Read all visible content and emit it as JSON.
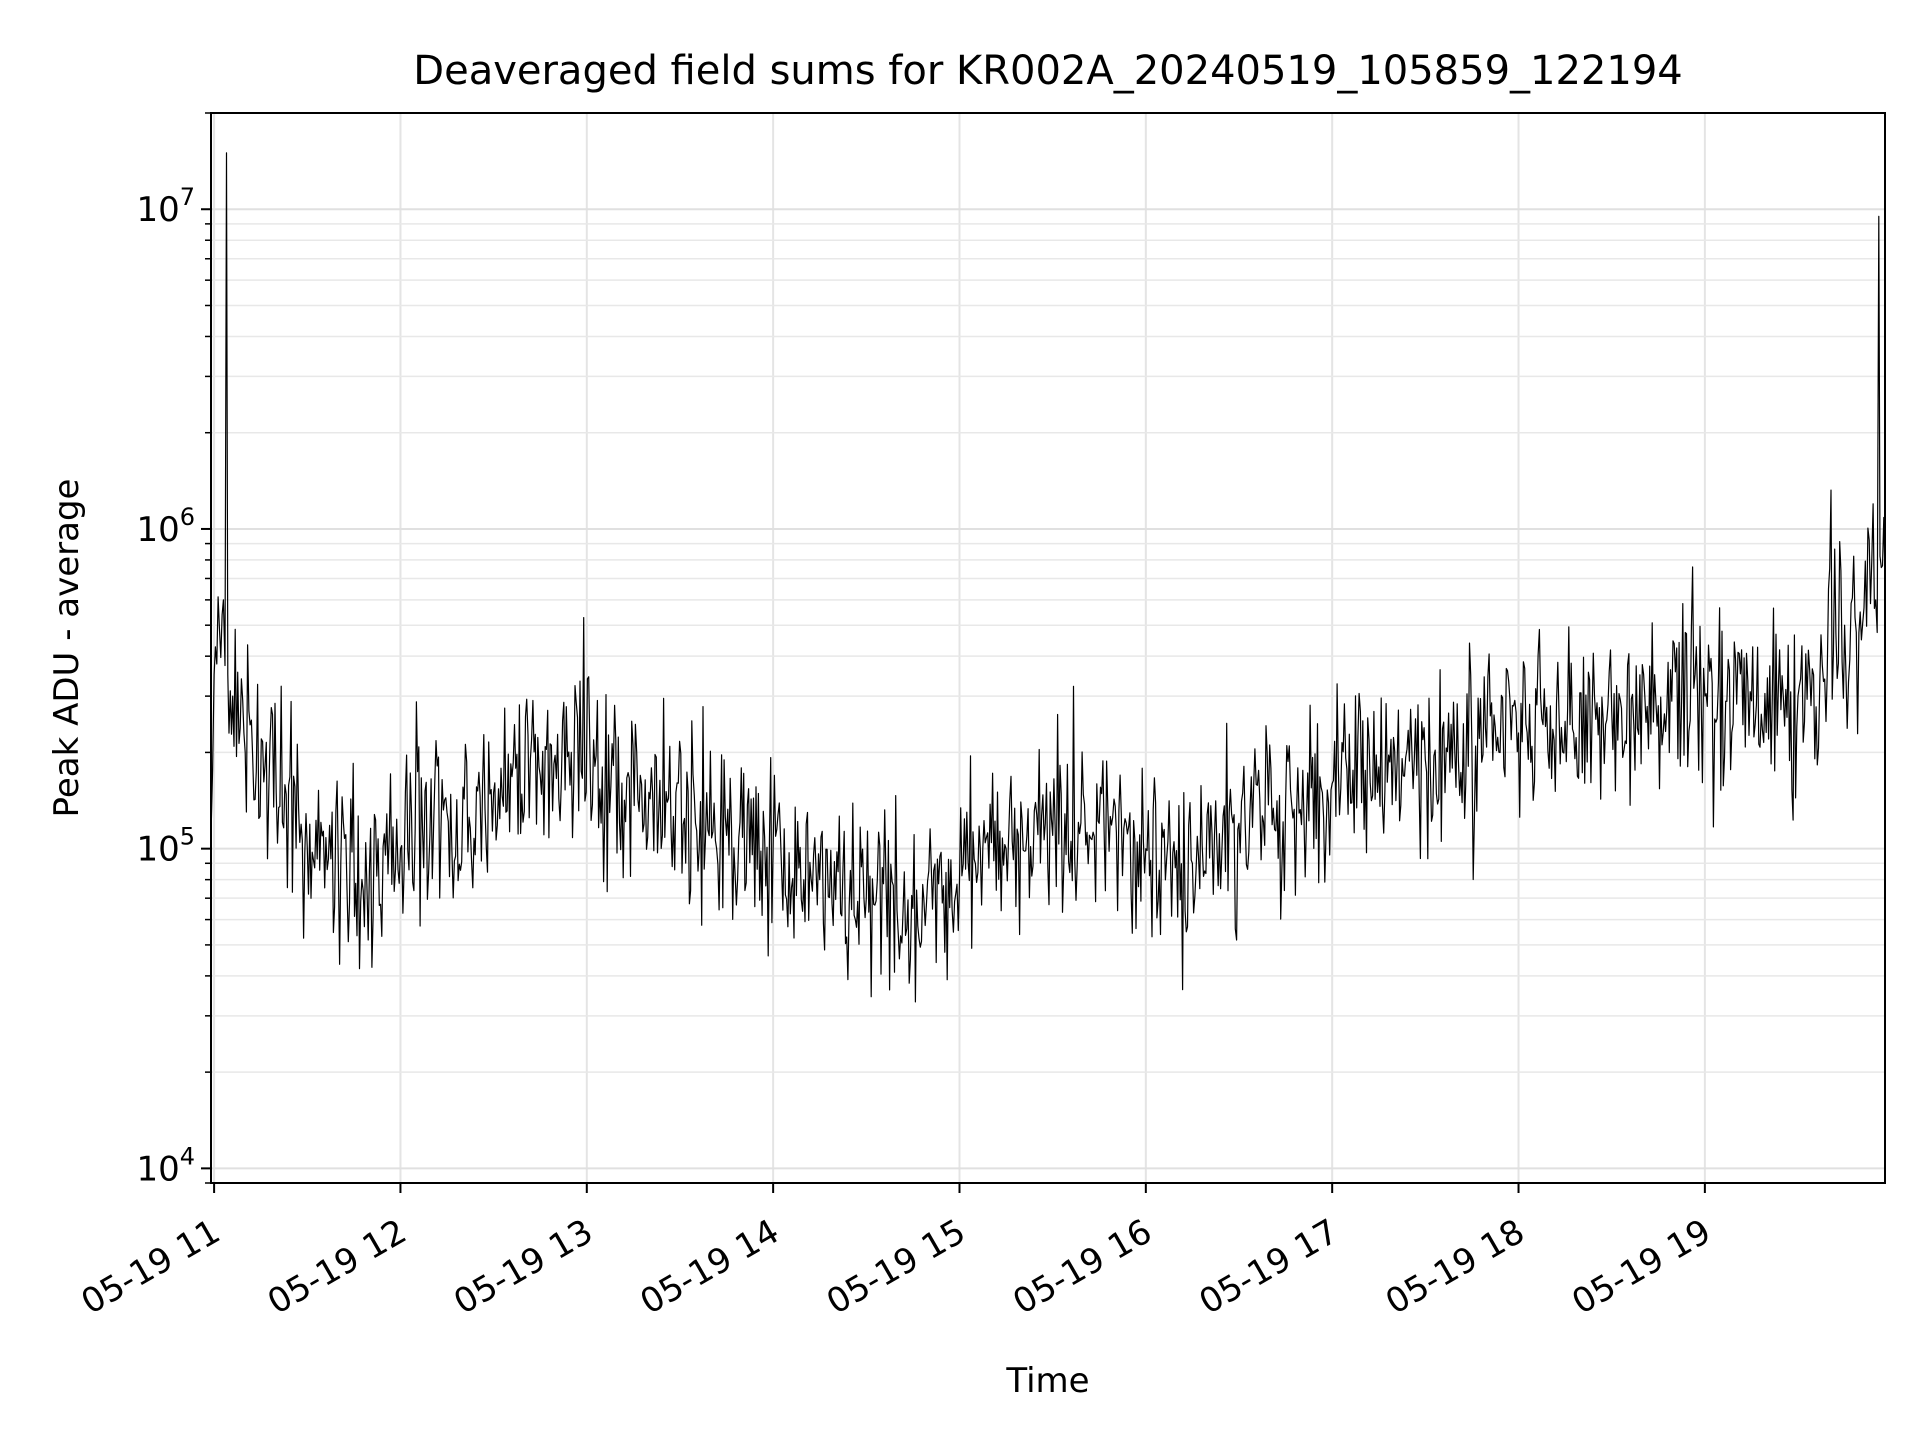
{
  "chart_data": {
    "type": "line",
    "title": "Deaveraged field sums for KR002A_20240519_105859_122194",
    "xlabel": "Time",
    "ylabel": "Peak ADU - average",
    "y_scale": "log",
    "ylim": [
      9000,
      20000000
    ],
    "xlim": [
      "2024-05-19 10:59",
      "2024-05-19 19:58"
    ],
    "grid": true,
    "x_ticks": [
      {
        "label": "05-19 11",
        "value": "2024-05-19 11:00"
      },
      {
        "label": "05-19 12",
        "value": "2024-05-19 12:00"
      },
      {
        "label": "05-19 13",
        "value": "2024-05-19 13:00"
      },
      {
        "label": "05-19 14",
        "value": "2024-05-19 14:00"
      },
      {
        "label": "05-19 15",
        "value": "2024-05-19 15:00"
      },
      {
        "label": "05-19 16",
        "value": "2024-05-19 16:00"
      },
      {
        "label": "05-19 17",
        "value": "2024-05-19 17:00"
      },
      {
        "label": "05-19 18",
        "value": "2024-05-19 18:00"
      },
      {
        "label": "05-19 19",
        "value": "2024-05-19 19:00"
      }
    ],
    "y_ticks": [
      {
        "base": "10",
        "exp": "4",
        "value": 10000
      },
      {
        "base": "10",
        "exp": "5",
        "value": 100000
      },
      {
        "base": "10",
        "exp": "6",
        "value": 1000000
      },
      {
        "base": "10",
        "exp": "7",
        "value": 10000000
      }
    ],
    "series": [
      {
        "color": "#000000",
        "x": [
          "2024-05-19 10:59",
          "2024-05-19 11:00",
          "2024-05-19 11:03",
          "2024-05-19 11:04",
          "2024-05-19 11:06",
          "2024-05-19 11:10",
          "2024-05-19 11:20",
          "2024-05-19 11:30",
          "2024-05-19 11:40",
          "2024-05-19 11:50",
          "2024-05-19 12:00",
          "2024-05-19 12:15",
          "2024-05-19 12:30",
          "2024-05-19 12:45",
          "2024-05-19 12:55",
          "2024-05-19 13:05",
          "2024-05-19 13:20",
          "2024-05-19 13:35",
          "2024-05-19 13:45",
          "2024-05-19 14:00",
          "2024-05-19 14:15",
          "2024-05-19 14:30",
          "2024-05-19 14:45",
          "2024-05-19 15:00",
          "2024-05-19 15:15",
          "2024-05-19 15:30",
          "2024-05-19 15:45",
          "2024-05-19 16:00",
          "2024-05-19 16:15",
          "2024-05-19 16:30",
          "2024-05-19 16:45",
          "2024-05-19 17:00",
          "2024-05-19 17:15",
          "2024-05-19 17:30",
          "2024-05-19 17:45",
          "2024-05-19 18:00",
          "2024-05-19 18:15",
          "2024-05-19 18:30",
          "2024-05-19 18:45",
          "2024-05-19 19:00",
          "2024-05-19 19:15",
          "2024-05-19 19:30",
          "2024-05-19 19:35",
          "2024-05-19 19:45",
          "2024-05-19 19:50",
          "2024-05-19 19:55",
          "2024-05-19 19:56",
          "2024-05-19 19:58"
        ],
        "y": [
          110000,
          350000,
          600000,
          15000000,
          300000,
          200000,
          150000,
          100000,
          90000,
          85000,
          100000,
          130000,
          150000,
          170000,
          200000,
          180000,
          150000,
          120000,
          110000,
          100000,
          80000,
          70000,
          65000,
          80000,
          100000,
          110000,
          120000,
          100000,
          90000,
          120000,
          140000,
          160000,
          180000,
          190000,
          210000,
          230000,
          250000,
          270000,
          280000,
          300000,
          290000,
          300000,
          350000,
          500000,
          550000,
          600000,
          9500000,
          700000
        ]
      }
    ]
  }
}
